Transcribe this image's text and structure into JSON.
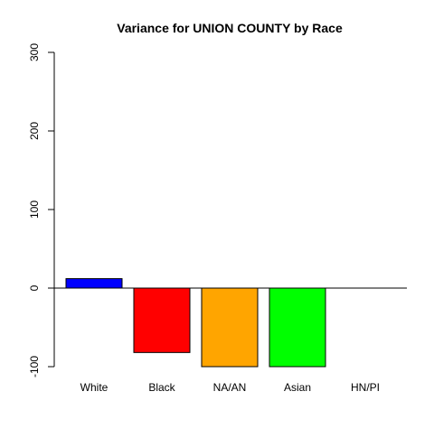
{
  "chart_data": {
    "type": "bar",
    "title": "Variance for UNION COUNTY by Race",
    "xlabel": "",
    "ylabel": "",
    "categories": [
      "White",
      "Black",
      "NA/AN",
      "Asian",
      "HN/PI"
    ],
    "values": [
      12,
      -82,
      -100,
      -100,
      0
    ],
    "colors": [
      "#0000ff",
      "#ff0000",
      "#ffa500",
      "#00ff00",
      "#00ffff"
    ],
    "ylim": [
      -100,
      300
    ],
    "yticks": [
      -100,
      0,
      100,
      200,
      300
    ],
    "ytick_labels": [
      "-100",
      "0",
      "100",
      "200",
      "300"
    ],
    "baseline": 0,
    "grid": false,
    "legend": false
  }
}
